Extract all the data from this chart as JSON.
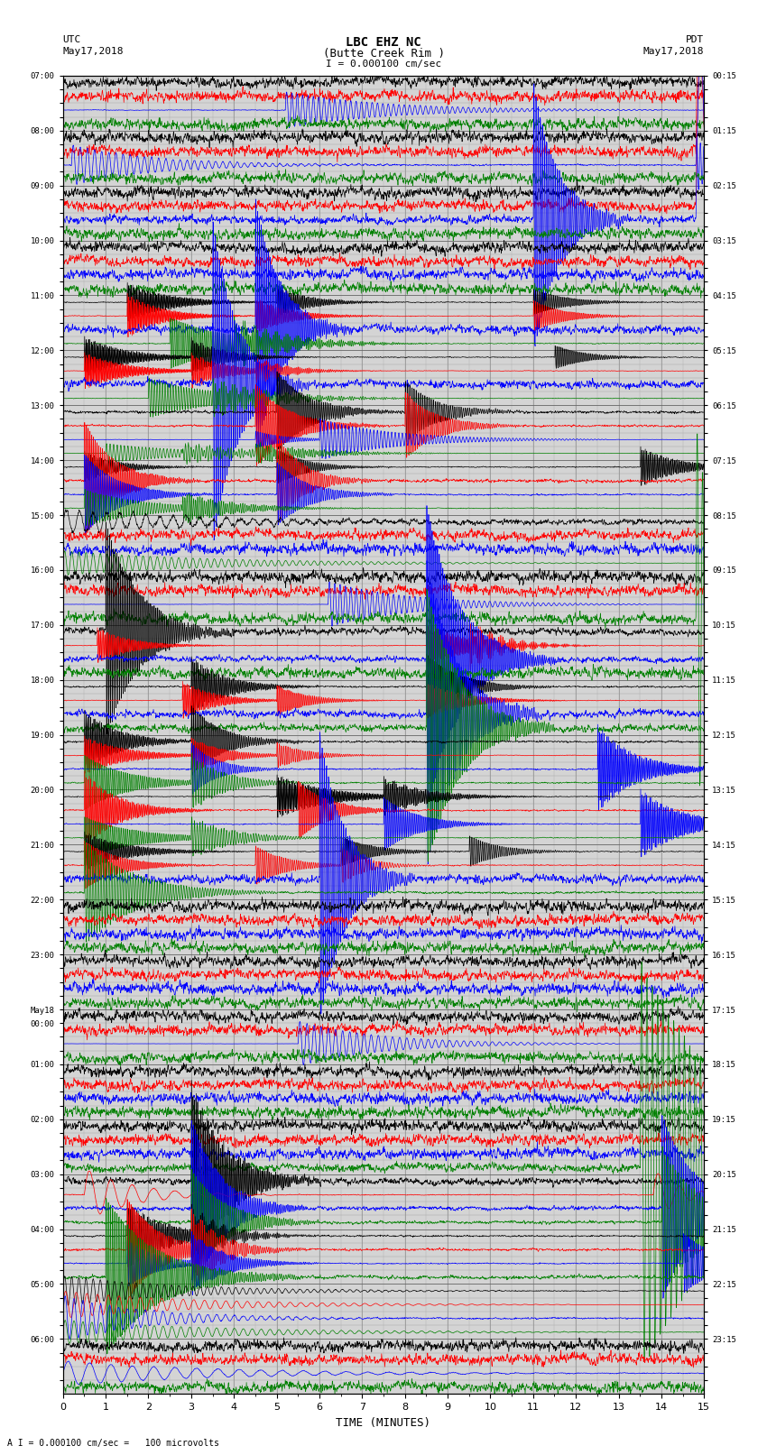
{
  "title_line1": "LBC EHZ NC",
  "title_line2": "(Butte Creek Rim )",
  "scale_label": "I = 0.000100 cm/sec",
  "left_label_top": "UTC",
  "left_label_date": "May17,2018",
  "right_label_top": "PDT",
  "right_label_date": "May17,2018",
  "bottom_label": "TIME (MINUTES)",
  "footnote": "A I = 0.000100 cm/sec =   100 microvolts",
  "utc_times": [
    "07:00",
    "",
    "",
    "",
    "08:00",
    "",
    "",
    "",
    "09:00",
    "",
    "",
    "",
    "10:00",
    "",
    "",
    "",
    "11:00",
    "",
    "",
    "",
    "12:00",
    "",
    "",
    "",
    "13:00",
    "",
    "",
    "",
    "14:00",
    "",
    "",
    "",
    "15:00",
    "",
    "",
    "",
    "16:00",
    "",
    "",
    "",
    "17:00",
    "",
    "",
    "",
    "18:00",
    "",
    "",
    "",
    "19:00",
    "",
    "",
    "",
    "20:00",
    "",
    "",
    "",
    "21:00",
    "",
    "",
    "",
    "22:00",
    "",
    "",
    "",
    "23:00",
    "",
    "",
    "",
    "May18",
    "00:00",
    "",
    "",
    "01:00",
    "",
    "",
    "",
    "02:00",
    "",
    "",
    "",
    "03:00",
    "",
    "",
    "",
    "04:00",
    "",
    "",
    "",
    "05:00",
    "",
    "",
    "",
    "06:00",
    "",
    "",
    ""
  ],
  "pdt_times": [
    "00:15",
    "",
    "",
    "",
    "01:15",
    "",
    "",
    "",
    "02:15",
    "",
    "",
    "",
    "03:15",
    "",
    "",
    "",
    "04:15",
    "",
    "",
    "",
    "05:15",
    "",
    "",
    "",
    "06:15",
    "",
    "",
    "",
    "07:15",
    "",
    "",
    "",
    "08:15",
    "",
    "",
    "",
    "09:15",
    "",
    "",
    "",
    "10:15",
    "",
    "",
    "",
    "11:15",
    "",
    "",
    "",
    "12:15",
    "",
    "",
    "",
    "13:15",
    "",
    "",
    "",
    "14:15",
    "",
    "",
    "",
    "15:15",
    "",
    "",
    "",
    "16:15",
    "",
    "",
    "",
    "17:15",
    "",
    "",
    "",
    "18:15",
    "",
    "",
    "",
    "19:15",
    "",
    "",
    "",
    "20:15",
    "",
    "",
    "",
    "21:15",
    "",
    "",
    "",
    "22:15",
    "",
    "",
    "",
    "23:15",
    "",
    "",
    ""
  ],
  "n_time_blocks": 24,
  "traces_per_block": 4,
  "row_colors": [
    "black",
    "red",
    "blue",
    "green"
  ],
  "bg_color": "#d4d4d4",
  "fig_bg": "white",
  "x_min": 0,
  "x_max": 15,
  "figwidth": 8.5,
  "figheight": 16.13,
  "dpi": 100
}
